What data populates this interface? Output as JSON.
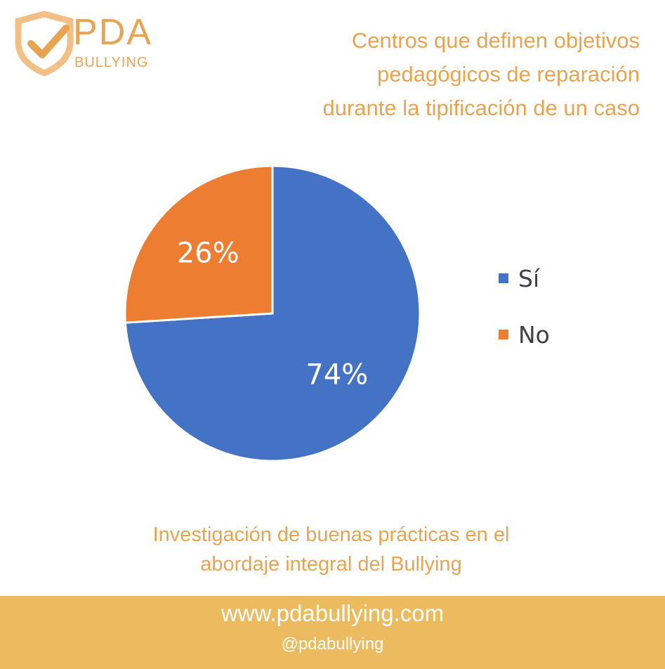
{
  "colors": {
    "accent": "#E8A451",
    "footer_bg": "#EDBB5F",
    "si": "#4472C4",
    "no": "#ED7D31"
  },
  "logo": {
    "line1": "PDA",
    "line2": "BULLYING",
    "icon": "shield-check-icon"
  },
  "header": {
    "title_lines": [
      "Centros que definen objetivos",
      "pedagógicos de reparación",
      "durante la tipificación de un caso"
    ]
  },
  "chart_data": {
    "type": "pie",
    "title": "",
    "slices": [
      {
        "label": "Sí",
        "value": 74,
        "data_label": "74%"
      },
      {
        "label": "No",
        "value": 26,
        "data_label": "26%"
      }
    ],
    "legend_position": "right"
  },
  "caption": {
    "lines": [
      "Investigación de buenas prácticas en el",
      "abordaje integral del Bullying"
    ]
  },
  "footer": {
    "url": "www.pdabullying.com",
    "handle": "@pdabullying"
  }
}
